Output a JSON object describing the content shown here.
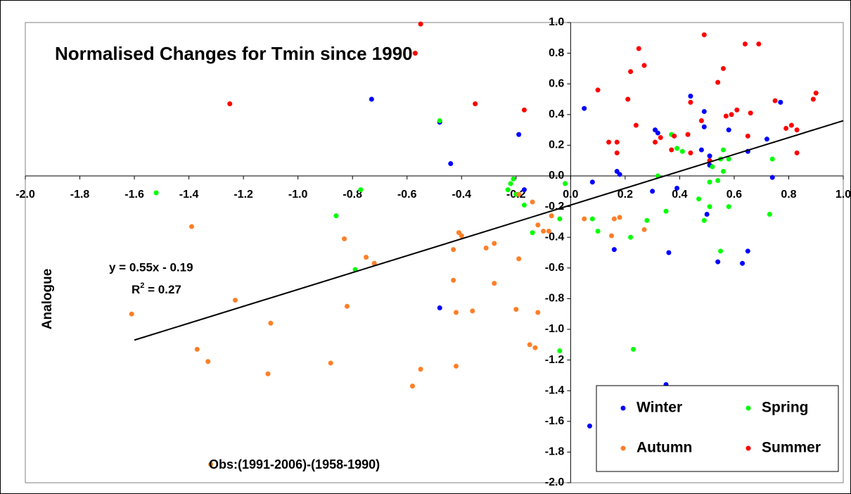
{
  "chart_data": {
    "type": "scatter",
    "title": "Normalised Changes for Tmin since 1990",
    "y_label": "Analogue",
    "x_label": "Obs:(1991-2006)-(1958-1990)",
    "equation": "y = 0.55x - 0.19",
    "r_squared": {
      "prefix": "R",
      "sup": "2",
      "suffix": " = 0.27"
    },
    "xlim": [
      -2.0,
      1.0
    ],
    "ylim": [
      -2.0,
      1.0
    ],
    "xticks": [
      {
        "value": -2.0,
        "label": "-2.0"
      },
      {
        "value": -1.8,
        "label": "-1.8"
      },
      {
        "value": -1.6,
        "label": "-1.6"
      },
      {
        "value": -1.4,
        "label": "-1.4"
      },
      {
        "value": -1.2,
        "label": "-1.2"
      },
      {
        "value": -1.0,
        "label": "-1.0"
      },
      {
        "value": -0.8,
        "label": "-0.8"
      },
      {
        "value": -0.6,
        "label": "-0.6"
      },
      {
        "value": -0.4,
        "label": "-0.4"
      },
      {
        "value": -0.2,
        "label": "-0.2"
      },
      {
        "value": 0,
        "label": "0.0"
      },
      {
        "value": 0.2,
        "label": "0.2"
      },
      {
        "value": 0.4,
        "label": "0.4"
      },
      {
        "value": 0.6,
        "label": "0.6"
      },
      {
        "value": 0.8,
        "label": "0.8"
      },
      {
        "value": 1.0,
        "label": "1.0"
      }
    ],
    "yticks": [
      {
        "value": 1.0,
        "label": "1.0"
      },
      {
        "value": 0.8,
        "label": "0.8"
      },
      {
        "value": 0.6,
        "label": "0.6"
      },
      {
        "value": 0.4,
        "label": "0.4"
      },
      {
        "value": 0.2,
        "label": "0.2"
      },
      {
        "value": 0,
        "label": "0.0"
      },
      {
        "value": -0.2,
        "label": "-0.2"
      },
      {
        "value": -0.4,
        "label": "-0.4"
      },
      {
        "value": -0.6,
        "label": "-0.6"
      },
      {
        "value": -0.8,
        "label": "-0.8"
      },
      {
        "value": -1.0,
        "label": "-1.0"
      },
      {
        "value": -1.2,
        "label": "-1.2"
      },
      {
        "value": -1.4,
        "label": "-1.4"
      },
      {
        "value": -1.6,
        "label": "-1.6"
      },
      {
        "value": -1.8,
        "label": "-1.8"
      },
      {
        "value": -2.0,
        "label": "-2.0"
      }
    ],
    "trendline": {
      "x": [
        -1.6,
        1.0
      ],
      "values": [
        -1.07,
        0.36
      ],
      "color": "#000000"
    },
    "series": [
      {
        "name": "Winter",
        "color": "#0000ff",
        "x": [
          -0.73,
          -0.48,
          -0.44,
          -0.19,
          -0.17,
          -0.48,
          0.05,
          0.08,
          0.16,
          0.17,
          0.18,
          0.3,
          0.31,
          0.32,
          0.36,
          0.39,
          0.44,
          0.48,
          0.49,
          0.49,
          0.5,
          0.51,
          0.51,
          0.54,
          0.58,
          0.63,
          0.65,
          0.65,
          0.72,
          0.74,
          0.77,
          0.35,
          0.07
        ],
        "values": [
          0.5,
          0.35,
          0.08,
          0.27,
          -0.09,
          -0.86,
          0.44,
          -0.04,
          -0.48,
          0.03,
          0.01,
          -0.1,
          0.3,
          0.28,
          -0.5,
          -0.08,
          0.52,
          0.17,
          0.42,
          0.32,
          -0.25,
          0.07,
          0.13,
          -0.56,
          0.3,
          -0.57,
          -0.49,
          0.16,
          0.24,
          -0.01,
          0.48,
          -1.36,
          -1.63
        ]
      },
      {
        "name": "Spring",
        "color": "#00ff00",
        "x": [
          -1.52,
          -0.86,
          -0.77,
          -0.79,
          -0.48,
          -0.22,
          -0.21,
          -0.23,
          -0.2,
          -0.17,
          -0.14,
          -0.04,
          -0.02,
          -0.04,
          0.08,
          0.1,
          0.22,
          0.23,
          0.28,
          0.32,
          0.35,
          0.37,
          0.39,
          0.41,
          0.47,
          0.49,
          0.51,
          0.51,
          0.52,
          0.54,
          0.55,
          0.56,
          0.56,
          0.55,
          0.58,
          0.58,
          0.73,
          0.74
        ],
        "values": [
          -0.11,
          -0.26,
          -0.09,
          -0.61,
          0.36,
          -0.05,
          -0.02,
          -0.09,
          -0.12,
          -0.19,
          -0.37,
          -0.28,
          -0.05,
          -1.14,
          -0.28,
          -0.36,
          -0.4,
          -1.13,
          -0.29,
          0.0,
          -0.23,
          0.27,
          0.18,
          0.16,
          -0.15,
          -0.29,
          -0.2,
          -0.04,
          0.06,
          -0.03,
          0.11,
          0.17,
          0.03,
          -0.49,
          -0.2,
          0.11,
          -0.25,
          0.11
        ]
      },
      {
        "name": "Autumn",
        "color": "#ff7f27",
        "x": [
          -1.61,
          -1.39,
          -1.37,
          -1.33,
          -1.23,
          -1.1,
          -1.11,
          -0.88,
          -0.83,
          -0.82,
          -0.75,
          -0.72,
          -0.58,
          -0.55,
          -0.43,
          -0.43,
          -0.42,
          -0.42,
          -0.41,
          -0.4,
          -0.36,
          -0.31,
          -0.28,
          -0.28,
          -0.2,
          -0.19,
          -0.19,
          -0.15,
          -0.13,
          -0.12,
          -0.14,
          -0.12,
          -0.1,
          -0.08,
          -0.07,
          0.05,
          0.15,
          0.16,
          0.18,
          0.27,
          -1.32
        ],
        "values": [
          -0.9,
          -0.33,
          -1.13,
          -1.21,
          -0.81,
          -0.96,
          -1.29,
          -1.22,
          -0.41,
          -0.85,
          -0.53,
          -0.57,
          -1.37,
          -1.26,
          -0.48,
          -0.68,
          -0.89,
          -1.24,
          -0.37,
          -0.39,
          -0.88,
          -0.47,
          -0.44,
          -0.7,
          -0.87,
          -0.54,
          -0.12,
          -1.1,
          -1.12,
          -0.89,
          -0.17,
          -0.32,
          -0.36,
          -0.36,
          -0.26,
          -0.28,
          -0.39,
          -0.28,
          -0.27,
          -0.35,
          -1.88
        ]
      },
      {
        "name": "Summer",
        "color": "#ff0000",
        "x": [
          -1.25,
          -0.55,
          -0.57,
          -0.35,
          -0.17,
          0.1,
          0.14,
          0.17,
          0.17,
          0.21,
          0.22,
          0.24,
          0.25,
          0.27,
          0.31,
          0.33,
          0.37,
          0.38,
          0.43,
          0.44,
          0.44,
          0.48,
          0.49,
          0.51,
          0.54,
          0.56,
          0.57,
          0.59,
          0.61,
          0.64,
          0.65,
          0.66,
          0.69,
          0.75,
          0.79,
          0.81,
          0.83,
          0.83,
          0.89,
          0.9
        ],
        "values": [
          0.47,
          0.99,
          0.8,
          0.47,
          0.43,
          0.56,
          0.22,
          0.22,
          0.15,
          0.5,
          0.68,
          0.33,
          0.83,
          0.72,
          0.22,
          0.25,
          0.17,
          0.26,
          0.27,
          0.15,
          0.48,
          0.36,
          0.92,
          0.1,
          0.61,
          0.7,
          0.39,
          0.4,
          0.43,
          0.86,
          0.26,
          0.41,
          0.86,
          0.49,
          0.31,
          0.33,
          0.3,
          0.15,
          0.5,
          0.54
        ]
      }
    ]
  }
}
